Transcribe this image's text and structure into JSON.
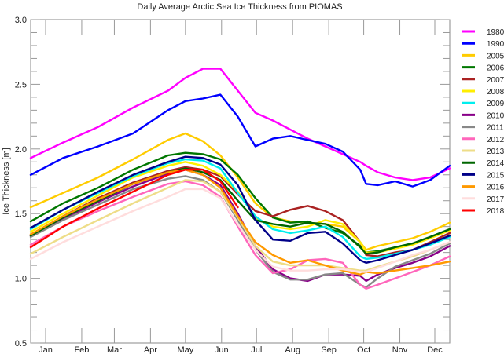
{
  "chart_data": {
    "type": "line",
    "title": "Daily Average Arctic Sea Ice Thickness from PIOMAS",
    "xlabel": "",
    "ylabel": "Ice Thickness  [m]",
    "ylim": [
      0.5,
      3.0
    ],
    "xlim": [
      0,
      365
    ],
    "yticks": [
      "0.5",
      "1.0",
      "1.5",
      "2.0",
      "2.5",
      "3.0"
    ],
    "ytick_values": [
      0.5,
      1.0,
      1.5,
      2.0,
      2.5,
      3.0
    ],
    "month_labels": [
      "Jan",
      "Feb",
      "Mar",
      "Apr",
      "May",
      "Jun",
      "Jul",
      "Aug",
      "Sep",
      "Oct",
      "Nov",
      "Dec"
    ],
    "month_mid_days": [
      15,
      46,
      74,
      105,
      135,
      166,
      196,
      227,
      258,
      288,
      319,
      349
    ],
    "grid": false,
    "legend_position": "right",
    "x": [
      0,
      30,
      60,
      90,
      120,
      135,
      150,
      165,
      180,
      195,
      210,
      225,
      240,
      255,
      270,
      285,
      290,
      300,
      315,
      330,
      345,
      362
    ],
    "series": [
      {
        "name": "1980",
        "color": "#ff00ff",
        "values": [
          1.93,
          2.05,
          2.17,
          2.32,
          2.45,
          2.55,
          2.62,
          2.62,
          2.45,
          2.28,
          2.22,
          2.15,
          2.08,
          2.02,
          1.96,
          1.9,
          1.87,
          1.82,
          1.78,
          1.76,
          1.78,
          1.85
        ]
      },
      {
        "name": "1990",
        "color": "#0000ff",
        "values": [
          1.8,
          1.93,
          2.02,
          2.12,
          2.3,
          2.37,
          2.39,
          2.42,
          2.25,
          2.02,
          2.08,
          2.1,
          2.07,
          2.04,
          1.98,
          1.84,
          1.73,
          1.72,
          1.75,
          1.71,
          1.76,
          1.87
        ]
      },
      {
        "name": "2005",
        "color": "#ffcc00",
        "values": [
          1.55,
          1.66,
          1.78,
          1.92,
          2.07,
          2.12,
          2.06,
          1.95,
          1.78,
          1.58,
          1.47,
          1.44,
          1.43,
          1.42,
          1.4,
          1.28,
          1.22,
          1.25,
          1.28,
          1.31,
          1.36,
          1.43
        ]
      },
      {
        "name": "2006",
        "color": "#007700",
        "values": [
          1.44,
          1.58,
          1.7,
          1.84,
          1.95,
          1.97,
          1.96,
          1.92,
          1.8,
          1.62,
          1.47,
          1.43,
          1.44,
          1.39,
          1.35,
          1.25,
          1.2,
          1.21,
          1.24,
          1.27,
          1.32,
          1.38
        ]
      },
      {
        "name": "2007",
        "color": "#aa2222",
        "values": [
          1.33,
          1.48,
          1.62,
          1.74,
          1.83,
          1.86,
          1.84,
          1.79,
          1.65,
          1.52,
          1.48,
          1.53,
          1.56,
          1.52,
          1.45,
          1.28,
          1.18,
          1.17,
          1.2,
          1.22,
          1.28,
          1.35
        ]
      },
      {
        "name": "2008",
        "color": "#ffee00",
        "values": [
          1.36,
          1.5,
          1.64,
          1.78,
          1.87,
          1.9,
          1.87,
          1.8,
          1.67,
          1.47,
          1.4,
          1.38,
          1.4,
          1.45,
          1.42,
          1.28,
          1.2,
          1.2,
          1.23,
          1.26,
          1.31,
          1.37
        ]
      },
      {
        "name": "2009",
        "color": "#00eeee",
        "values": [
          1.38,
          1.53,
          1.66,
          1.79,
          1.89,
          1.92,
          1.91,
          1.85,
          1.66,
          1.48,
          1.38,
          1.35,
          1.37,
          1.4,
          1.32,
          1.17,
          1.15,
          1.16,
          1.19,
          1.22,
          1.26,
          1.32
        ]
      },
      {
        "name": "2010",
        "color": "#880088",
        "values": [
          1.33,
          1.46,
          1.59,
          1.71,
          1.81,
          1.84,
          1.8,
          1.72,
          1.5,
          1.25,
          1.07,
          1.0,
          0.98,
          1.03,
          1.03,
          1.02,
          0.98,
          1.03,
          1.08,
          1.12,
          1.17,
          1.25
        ]
      },
      {
        "name": "2011",
        "color": "#888888",
        "values": [
          1.32,
          1.45,
          1.57,
          1.69,
          1.77,
          1.79,
          1.76,
          1.67,
          1.45,
          1.22,
          1.05,
          0.99,
          0.99,
          1.03,
          1.04,
          0.95,
          0.93,
          1.0,
          1.09,
          1.14,
          1.19,
          1.27
        ]
      },
      {
        "name": "2012",
        "color": "#ff66bb",
        "values": [
          1.26,
          1.4,
          1.52,
          1.63,
          1.73,
          1.75,
          1.72,
          1.63,
          1.4,
          1.18,
          1.04,
          1.07,
          1.14,
          1.15,
          1.12,
          0.95,
          0.92,
          0.95,
          1.0,
          1.05,
          1.1,
          1.17
        ]
      },
      {
        "name": "2013",
        "color": "#eedd88",
        "values": [
          1.19,
          1.32,
          1.45,
          1.58,
          1.7,
          1.76,
          1.75,
          1.67,
          1.47,
          1.25,
          1.13,
          1.1,
          1.1,
          1.1,
          1.08,
          1.06,
          1.06,
          1.09,
          1.13,
          1.17,
          1.22,
          1.28
        ]
      },
      {
        "name": "2014",
        "color": "#006600",
        "values": [
          1.33,
          1.47,
          1.6,
          1.73,
          1.82,
          1.85,
          1.82,
          1.76,
          1.6,
          1.45,
          1.42,
          1.4,
          1.43,
          1.42,
          1.36,
          1.24,
          1.19,
          1.2,
          1.24,
          1.27,
          1.32,
          1.38
        ]
      },
      {
        "name": "2015",
        "color": "#000088",
        "values": [
          1.39,
          1.53,
          1.67,
          1.8,
          1.9,
          1.94,
          1.93,
          1.88,
          1.72,
          1.45,
          1.3,
          1.29,
          1.35,
          1.36,
          1.27,
          1.14,
          1.12,
          1.14,
          1.18,
          1.22,
          1.27,
          1.33
        ]
      },
      {
        "name": "2016",
        "color": "#ff9900",
        "values": [
          1.34,
          1.48,
          1.61,
          1.73,
          1.82,
          1.84,
          1.8,
          1.7,
          1.48,
          1.28,
          1.18,
          1.12,
          1.14,
          1.1,
          1.06,
          1.03,
          1.05,
          1.04,
          1.06,
          1.08,
          1.1,
          1.13
        ]
      },
      {
        "name": "2017",
        "color": "#ffdddd",
        "values": [
          1.15,
          1.28,
          1.4,
          1.52,
          1.63,
          1.69,
          1.69,
          1.62,
          1.42,
          1.22,
          1.09,
          1.06,
          1.06,
          1.07,
          1.07,
          1.05,
          1.05,
          1.08,
          1.13,
          1.18,
          1.22,
          1.28
        ]
      },
      {
        "name": "2018",
        "color": "#ff0000",
        "values": [
          1.24,
          1.4,
          1.54,
          1.67,
          1.8,
          1.84,
          1.84,
          1.75,
          1.55,
          null,
          null,
          null,
          null,
          null,
          null,
          null,
          null,
          null,
          null,
          null,
          null,
          null
        ]
      }
    ]
  }
}
